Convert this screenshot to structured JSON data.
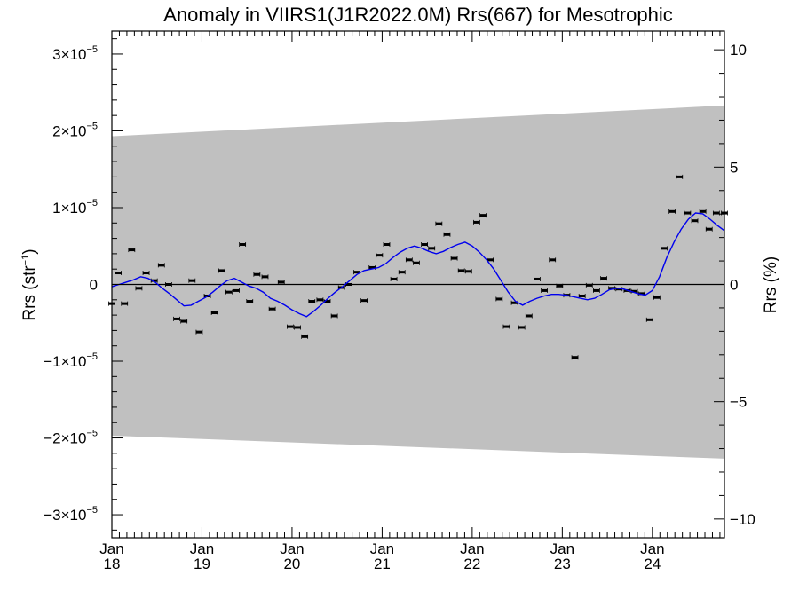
{
  "chart_data": {
    "type": "scatter",
    "title": "Anomaly in VIIRS1(J1R2022.0M) Rrs(667) for Mesotrophic",
    "ylabel_left": {
      "text": "Rrs (str",
      "sup": "−1",
      "close": ")"
    },
    "ylabel_right": "Rrs (%)",
    "xlabel": "",
    "x_range": [
      2018.0,
      2024.8
    ],
    "ylim_left": [
      -3.3e-05,
      3.3e-05
    ],
    "ylim_right": [
      -10.8,
      10.8
    ],
    "left_ticks": [
      {
        "value": 3e-05,
        "mant": "3×10",
        "exp": "−5"
      },
      {
        "value": 2e-05,
        "mant": "2×10",
        "exp": "−5"
      },
      {
        "value": 1e-05,
        "mant": "1×10",
        "exp": "−5"
      },
      {
        "value": 0,
        "mant": "0",
        "exp": ""
      },
      {
        "value": -1e-05,
        "mant": "−1×10",
        "exp": "−5"
      },
      {
        "value": -2e-05,
        "mant": "−2×10",
        "exp": "−5"
      },
      {
        "value": -3e-05,
        "mant": "−3×10",
        "exp": "−5"
      }
    ],
    "right_ticks": [
      {
        "value": 10,
        "label": "10"
      },
      {
        "value": 5,
        "label": "5"
      },
      {
        "value": 0,
        "label": "0"
      },
      {
        "value": -5,
        "label": "−5"
      },
      {
        "value": -10,
        "label": "−10"
      }
    ],
    "x_ticks": [
      {
        "value": 2018,
        "month": "Jan",
        "year": "18"
      },
      {
        "value": 2019,
        "month": "Jan",
        "year": "19"
      },
      {
        "value": 2020,
        "month": "Jan",
        "year": "20"
      },
      {
        "value": 2021,
        "month": "Jan",
        "year": "21"
      },
      {
        "value": 2022,
        "month": "Jan",
        "year": "22"
      },
      {
        "value": 2023,
        "month": "Jan",
        "year": "23"
      },
      {
        "value": 2024,
        "month": "Jan",
        "year": "24"
      }
    ],
    "uncertainty_band": {
      "x": [
        2018.0,
        2024.8
      ],
      "upper": [
        1.93e-05,
        2.33e-05
      ],
      "lower": [
        -1.97e-05,
        -2.27e-05
      ],
      "color": "#c0c0c0"
    },
    "zero_line": 0,
    "points": {
      "name": "",
      "x": [
        2018.0,
        2018.07,
        2018.14,
        2018.22,
        2018.3,
        2018.38,
        2018.47,
        2018.55,
        2018.63,
        2018.72,
        2018.8,
        2018.89,
        2018.97,
        2019.06,
        2019.14,
        2019.22,
        2019.3,
        2019.38,
        2019.45,
        2019.53,
        2019.61,
        2019.7,
        2019.78,
        2019.88,
        2019.98,
        2020.06,
        2020.14,
        2020.22,
        2020.31,
        2020.39,
        2020.47,
        2020.55,
        2020.63,
        2020.72,
        2020.8,
        2020.89,
        2020.97,
        2021.05,
        2021.13,
        2021.22,
        2021.3,
        2021.38,
        2021.47,
        2021.55,
        2021.63,
        2021.72,
        2021.8,
        2021.88,
        2021.96,
        2022.05,
        2022.12,
        2022.2,
        2022.3,
        2022.38,
        2022.47,
        2022.55,
        2022.63,
        2022.72,
        2022.8,
        2022.89,
        2022.97,
        2023.05,
        2023.14,
        2023.22,
        2023.3,
        2023.38,
        2023.46,
        2023.55,
        2023.63,
        2023.72,
        2023.8,
        2023.88,
        2023.97,
        2024.05,
        2024.13,
        2024.22,
        2024.3,
        2024.39,
        2024.47,
        2024.56,
        2024.63,
        2024.71,
        2024.8
      ],
      "y": [
        -2.5e-06,
        1.5e-06,
        -2.5e-06,
        4.5e-06,
        -5e-07,
        1.5e-06,
        5e-07,
        2.5e-06,
        0.0,
        -4.5e-06,
        -4.8e-06,
        5e-07,
        -6.2e-06,
        -1.5e-06,
        -3.7e-06,
        1.8e-06,
        -1e-06,
        -8e-07,
        5.2e-06,
        -2.2e-06,
        1.3e-06,
        1e-06,
        -3.2e-06,
        3e-07,
        -5.5e-06,
        -5.6e-06,
        -6.8e-06,
        -2.2e-06,
        -2e-06,
        -2.2e-06,
        -4.1e-06,
        -4e-07,
        0.0,
        1.6e-06,
        -2.1e-06,
        2.2e-06,
        3.8e-06,
        5.2e-06,
        7e-07,
        1.6e-06,
        3.2e-06,
        2.8e-06,
        5.2e-06,
        4.7e-06,
        7.9e-06,
        6.5e-06,
        3.4e-06,
        1.8e-06,
        1.7e-06,
        8.1e-06,
        9e-06,
        3.2e-06,
        -1.9e-06,
        -5.5e-06,
        -2.4e-06,
        -5.6e-06,
        -4.1e-06,
        7e-07,
        -8e-07,
        3.2e-06,
        -2e-07,
        -1.4e-06,
        -9.5e-06,
        -1.5e-06,
        -1e-07,
        -8e-07,
        8e-07,
        -5e-07,
        -6e-07,
        -8e-07,
        -9e-07,
        -1.2e-06,
        -4.6e-06,
        -1.7e-06,
        4.7e-06,
        9.5e-06,
        1.4e-05,
        9.3e-06,
        8.3e-06,
        9.5e-06,
        7.2e-06,
        9.3e-06,
        9.3e-06
      ],
      "color": "#000000"
    },
    "smoothed": {
      "name": "",
      "x": [
        2018.0,
        2018.08,
        2018.16,
        2018.24,
        2018.32,
        2018.4,
        2018.48,
        2018.56,
        2018.64,
        2018.72,
        2018.8,
        2018.88,
        2018.96,
        2019.04,
        2019.12,
        2019.2,
        2019.28,
        2019.36,
        2019.44,
        2019.52,
        2019.6,
        2019.68,
        2019.76,
        2019.84,
        2019.92,
        2020.0,
        2020.08,
        2020.16,
        2020.24,
        2020.32,
        2020.4,
        2020.48,
        2020.56,
        2020.64,
        2020.72,
        2020.8,
        2020.88,
        2020.96,
        2021.04,
        2021.12,
        2021.2,
        2021.28,
        2021.36,
        2021.44,
        2021.52,
        2021.6,
        2021.68,
        2021.76,
        2021.84,
        2021.92,
        2022.0,
        2022.08,
        2022.16,
        2022.24,
        2022.32,
        2022.4,
        2022.48,
        2022.56,
        2022.64,
        2022.72,
        2022.8,
        2022.88,
        2022.96,
        2023.04,
        2023.12,
        2023.2,
        2023.28,
        2023.36,
        2023.44,
        2023.52,
        2023.6,
        2023.68,
        2023.76,
        2023.84,
        2023.92,
        2024.0,
        2024.08,
        2024.16,
        2024.24,
        2024.32,
        2024.4,
        2024.48,
        2024.56,
        2024.64,
        2024.72,
        2024.8
      ],
      "y": [
        -3e-07,
        0.0,
        3e-07,
        6e-07,
        1e-06,
        8e-07,
        3e-07,
        -5e-07,
        -1.2e-06,
        -2e-06,
        -2.8e-06,
        -2.7e-06,
        -2.2e-06,
        -1.7e-06,
        -1e-06,
        -2e-07,
        5e-07,
        8e-07,
        3e-07,
        -2e-07,
        -5e-07,
        -1e-06,
        -1.8e-06,
        -2.2e-06,
        -2.7e-06,
        -3.3e-06,
        -3.8e-06,
        -4.2e-06,
        -3.5e-06,
        -2.7e-06,
        -1.8e-06,
        -1e-06,
        -3e-07,
        5e-07,
        1.3e-06,
        1.8e-06,
        2e-06,
        2.2e-06,
        2.7e-06,
        3.5e-06,
        4.2e-06,
        4.7e-06,
        5e-06,
        4.7e-06,
        4.3e-06,
        4e-06,
        4.3e-06,
        4.8e-06,
        5.2e-06,
        5.5e-06,
        5e-06,
        4.2e-06,
        3.2e-06,
        2e-06,
        5e-07,
        -1e-06,
        -2.2e-06,
        -2.7e-06,
        -2.2e-06,
        -1.8e-06,
        -1.5e-06,
        -1.3e-06,
        -1.3e-06,
        -1.4e-06,
        -1.6e-06,
        -1.8e-06,
        -2e-06,
        -1.8e-06,
        -1.3e-06,
        -7e-07,
        -5e-07,
        -6e-07,
        -9e-07,
        -1.2e-06,
        -1.4e-06,
        -8e-07,
        1e-06,
        3.5e-06,
        5.5e-06,
        7.2e-06,
        8.5e-06,
        9.3e-06,
        9.2e-06,
        8.5e-06,
        7.7e-06,
        7e-06
      ],
      "color": "#0000ee"
    },
    "grid": false,
    "legend": "none"
  }
}
